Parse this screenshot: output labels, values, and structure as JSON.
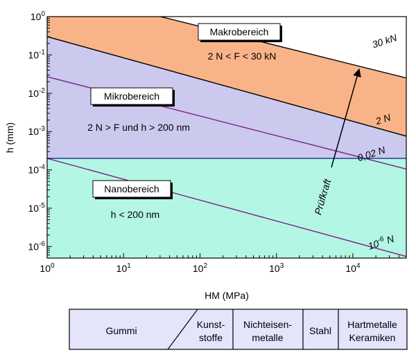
{
  "chart_data": {
    "type": "line",
    "xscale": "log",
    "yscale": "log",
    "xlim": [
      1,
      50000
    ],
    "ylim": [
      5e-07,
      1
    ],
    "xlabel": "HM (MPa)",
    "ylabel": "h (mm)",
    "x_ticks": [
      {
        "base": "10",
        "exp": "0"
      },
      {
        "base": "10",
        "exp": "1"
      },
      {
        "base": "10",
        "exp": "2"
      },
      {
        "base": "10",
        "exp": "3"
      },
      {
        "base": "10",
        "exp": "4"
      }
    ],
    "y_ticks": [
      {
        "base": "10",
        "exp": "0"
      },
      {
        "base": "10",
        "exp": "-1"
      },
      {
        "base": "10",
        "exp": "-2"
      },
      {
        "base": "10",
        "exp": "-3"
      },
      {
        "base": "10",
        "exp": "-4"
      },
      {
        "base": "10",
        "exp": "-5"
      },
      {
        "base": "10",
        "exp": "-6"
      }
    ],
    "regions": [
      {
        "key": "makro",
        "name": "Makrobereich",
        "condition": "2 N < F < 30 kN",
        "color": "#f8b488"
      },
      {
        "key": "mikro",
        "name": "Mikrobereich",
        "condition": "2 N > F und h > 200 nm",
        "color": "#cbc9ee"
      },
      {
        "key": "nano",
        "name": "Nanobereich",
        "condition": "h < 200 nm",
        "color": "#b4f6e4"
      }
    ],
    "boundary_h": 0.0002,
    "series": [
      {
        "key": "f30kN",
        "label": "30 kN",
        "points": [
          [
            1,
            5.5
          ],
          [
            50000,
            0.025
          ]
        ],
        "color": "#000000"
      },
      {
        "key": "f2N",
        "label": "2 N",
        "points": [
          [
            1,
            0.3
          ],
          [
            50000,
            0.00076
          ]
        ],
        "color": "#000000"
      },
      {
        "key": "f002N",
        "label": "0,02 N",
        "points": [
          [
            1,
            0.027
          ],
          [
            50000,
            0.000105
          ]
        ],
        "color": "#7a1c86"
      },
      {
        "key": "f1e6N",
        "label": "10",
        "label_sup": "-6",
        "label_suffix": " N",
        "points": [
          [
            1,
            0.0002
          ],
          [
            50000,
            5.5e-07
          ]
        ],
        "color": "#7a1c86"
      }
    ],
    "arrow_label": "Prüfkraft"
  },
  "materials": [
    {
      "key": "gummi",
      "lines": [
        "Gummi"
      ]
    },
    {
      "key": "kunststoffe",
      "lines": [
        "Kunst-",
        "stoffe"
      ]
    },
    {
      "key": "nichteisenmetalle",
      "lines": [
        "Nichteisen-",
        "metalle"
      ]
    },
    {
      "key": "stahl",
      "lines": [
        "Stahl"
      ]
    },
    {
      "key": "hartmetalle",
      "lines": [
        "Hartmetalle",
        "Keramiken"
      ]
    }
  ],
  "colors": {
    "materials_fill": "#e4e4fb",
    "boundary_line": "#2a3a8c",
    "frame": "#000000"
  }
}
